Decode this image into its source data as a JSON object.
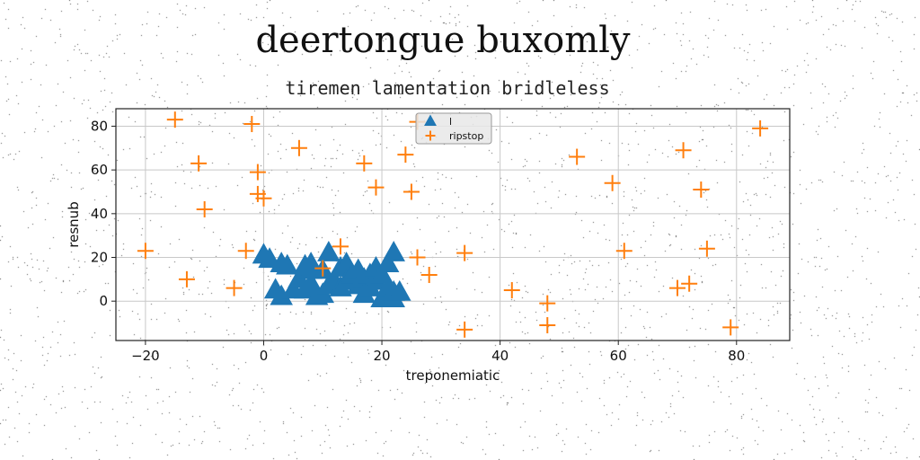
{
  "chart_data": {
    "type": "scatter",
    "title": "deertongue buxomly",
    "subtitle": "tiremen lamentation bridleless",
    "xlabel": "treponemiatic",
    "ylabel": "resnub",
    "xlim": [
      -25,
      89
    ],
    "ylim": [
      -18,
      88
    ],
    "xticks": [
      -20,
      0,
      20,
      40,
      60,
      80
    ],
    "yticks": [
      0,
      20,
      40,
      60,
      80
    ],
    "grid": true,
    "legend_position": "top-center",
    "series": [
      {
        "name": "l",
        "marker": "triangle",
        "color": "#1f77b4",
        "points": [
          [
            0,
            21
          ],
          [
            1,
            19
          ],
          [
            2,
            5
          ],
          [
            3,
            17
          ],
          [
            3,
            2
          ],
          [
            4,
            16
          ],
          [
            5,
            5
          ],
          [
            6,
            10
          ],
          [
            7,
            5
          ],
          [
            7,
            16
          ],
          [
            8,
            17
          ],
          [
            8,
            8
          ],
          [
            8,
            14
          ],
          [
            9,
            2
          ],
          [
            10,
            3
          ],
          [
            10,
            14
          ],
          [
            11,
            7
          ],
          [
            11,
            22
          ],
          [
            12,
            9
          ],
          [
            13,
            15
          ],
          [
            13,
            6
          ],
          [
            14,
            17
          ],
          [
            14,
            9
          ],
          [
            15,
            12
          ],
          [
            16,
            14
          ],
          [
            16,
            7
          ],
          [
            17,
            10
          ],
          [
            17,
            3
          ],
          [
            18,
            12
          ],
          [
            18,
            6
          ],
          [
            19,
            9
          ],
          [
            19,
            15
          ],
          [
            20,
            12
          ],
          [
            20,
            1
          ],
          [
            21,
            17
          ],
          [
            21,
            6
          ],
          [
            22,
            1
          ],
          [
            22,
            4
          ],
          [
            22,
            22
          ],
          [
            23,
            4
          ]
        ]
      },
      {
        "name": "ripstop",
        "marker": "plus",
        "color": "#ff7f0e",
        "points": [
          [
            -20,
            23
          ],
          [
            -15,
            83
          ],
          [
            -13,
            10
          ],
          [
            -11,
            63
          ],
          [
            -10,
            42
          ],
          [
            -5,
            6
          ],
          [
            -3,
            23
          ],
          [
            -2,
            81
          ],
          [
            -1,
            59
          ],
          [
            -1,
            49
          ],
          [
            0,
            47
          ],
          [
            6,
            70
          ],
          [
            10,
            15
          ],
          [
            13,
            25
          ],
          [
            17,
            63
          ],
          [
            19,
            52
          ],
          [
            24,
            67
          ],
          [
            25,
            50
          ],
          [
            26,
            20
          ],
          [
            26,
            82
          ],
          [
            28,
            12
          ],
          [
            34,
            22
          ],
          [
            34,
            -13
          ],
          [
            42,
            5
          ],
          [
            48,
            -1
          ],
          [
            48,
            -11
          ],
          [
            53,
            66
          ],
          [
            59,
            54
          ],
          [
            61,
            23
          ],
          [
            70,
            6
          ],
          [
            71,
            69
          ],
          [
            72,
            8
          ],
          [
            74,
            51
          ],
          [
            75,
            24
          ],
          [
            79,
            -12
          ],
          [
            84,
            79
          ]
        ]
      }
    ]
  }
}
